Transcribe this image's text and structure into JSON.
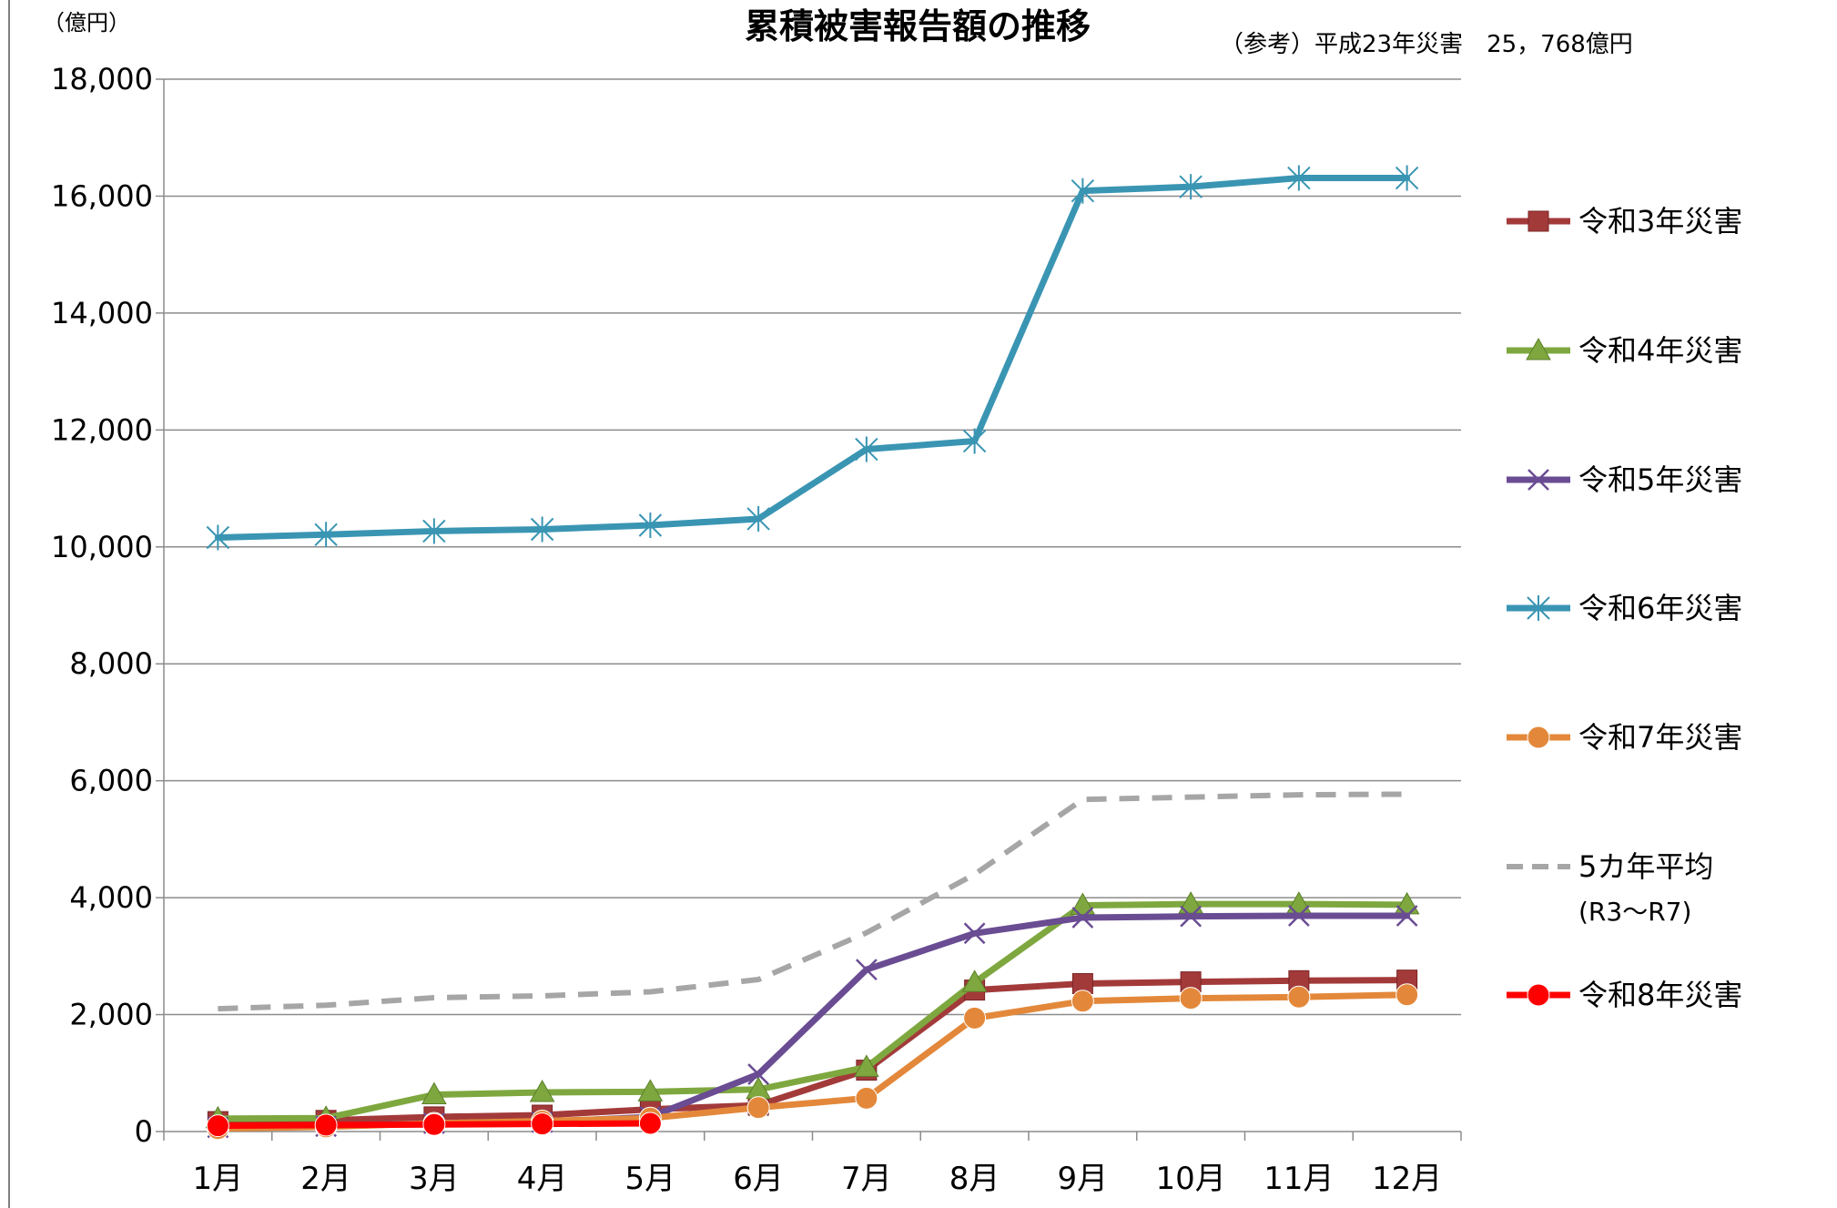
{
  "chart_data": {
    "type": "line",
    "title": "累積被害報告額の推移",
    "note": "（参考）平成23年災害　25，768億円",
    "unit_label": "（億円）",
    "categories": [
      "1月",
      "2月",
      "3月",
      "4月",
      "5月",
      "6月",
      "7月",
      "8月",
      "9月",
      "10月",
      "11月",
      "12月"
    ],
    "y_ticks": [
      "0",
      "2,000",
      "4,000",
      "6,000",
      "8,000",
      "10,000",
      "12,000",
      "14,000",
      "16,000",
      "18,000"
    ],
    "ylim": [
      0,
      18000
    ],
    "grid": true,
    "legend_position": "right",
    "series": [
      {
        "key": "r3",
        "name": "令和3年災害",
        "color": "#a33a3a",
        "marker": "square",
        "dash": false,
        "values": [
          170,
          190,
          250,
          280,
          380,
          450,
          1050,
          2420,
          2530,
          2560,
          2580,
          2590
        ]
      },
      {
        "key": "r4",
        "name": "令和4年災害",
        "color": "#7ea83f",
        "marker": "triangle",
        "dash": false,
        "values": [
          220,
          230,
          630,
          670,
          680,
          720,
          1100,
          2550,
          3870,
          3890,
          3890,
          3880
        ]
      },
      {
        "key": "r5",
        "name": "令和5年災害",
        "color": "#6a4c93",
        "marker": "x",
        "dash": false,
        "values": [
          70,
          90,
          140,
          160,
          250,
          980,
          2770,
          3390,
          3660,
          3680,
          3690,
          3690
        ]
      },
      {
        "key": "r6",
        "name": "令和6年災害",
        "color": "#3a95b3",
        "marker": "asterisk",
        "dash": false,
        "values": [
          10160,
          10210,
          10270,
          10300,
          10370,
          10480,
          11670,
          11810,
          16090,
          16160,
          16310,
          16310
        ]
      },
      {
        "key": "r7",
        "name": "令和7年災害",
        "color": "#e3883a",
        "marker": "circle",
        "dash": false,
        "values": [
          50,
          80,
          140,
          180,
          230,
          410,
          570,
          1940,
          2230,
          2280,
          2300,
          2340
        ]
      },
      {
        "key": "avg",
        "name": "5カ年平均",
        "name_line2": "(R3～R7)",
        "color": "#a6a6a6",
        "marker": "none",
        "dash": true,
        "values": [
          2100,
          2160,
          2290,
          2320,
          2390,
          2600,
          3400,
          4400,
          5680,
          5720,
          5760,
          5770
        ]
      },
      {
        "key": "r8",
        "name": "令和8年災害",
        "color": "#ff0000",
        "marker": "circle",
        "dash": false,
        "values": [
          100,
          110,
          120,
          130,
          140,
          null,
          null,
          null,
          null,
          null,
          null,
          null
        ]
      }
    ]
  }
}
